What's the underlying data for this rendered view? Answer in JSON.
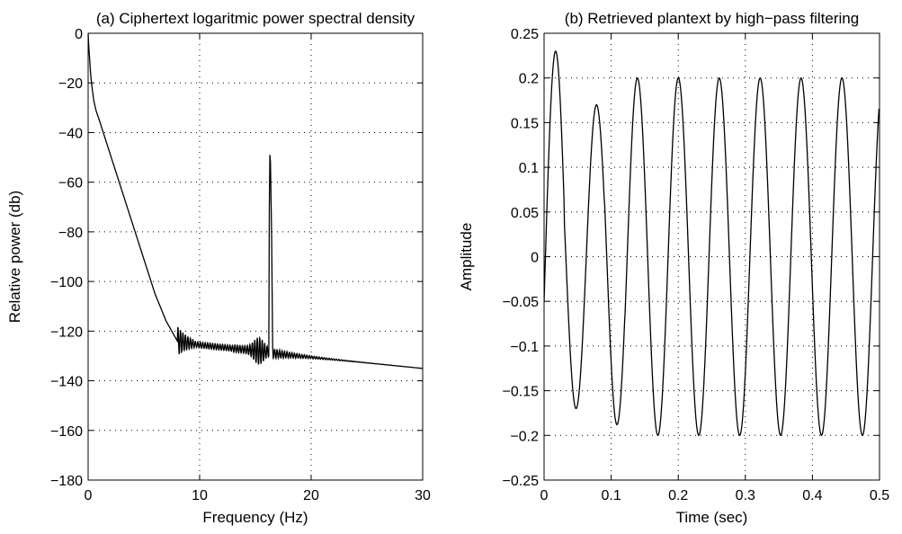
{
  "chart_data": [
    {
      "type": "line",
      "title": "(a) Ciphertext logaritmic power spectral density",
      "xlabel": "Frequency (Hz)",
      "ylabel": "Relative power (db)",
      "xlim": [
        0,
        30
      ],
      "ylim": [
        -180,
        0
      ],
      "xticks": [
        0,
        10,
        20,
        30
      ],
      "xtick_labels": [
        "0",
        "10",
        "20",
        "30"
      ],
      "yticks": [
        0,
        -20,
        -40,
        -60,
        -80,
        -100,
        -120,
        -140,
        -160,
        -180
      ],
      "ytick_labels": [
        "0",
        "−20",
        "−40",
        "−60",
        "−80",
        "−100",
        "−120",
        "−140",
        "−160",
        "−180"
      ],
      "grid": "dotted",
      "line_color": "#000000",
      "series": [
        {
          "x": [
            0,
            0.05,
            0.1,
            0.2,
            0.3,
            0.5,
            0.7,
            1.0,
            1.5,
            2.0,
            3.0,
            4.0,
            5.0,
            6.0,
            7.0,
            8.0,
            8.5,
            9.0,
            10.0,
            11.0,
            12.0,
            13.0,
            14.0,
            15.0,
            15.5,
            16.0,
            16.2,
            16.3,
            16.5,
            16.6,
            16.8,
            17.0,
            18.0,
            19.0,
            20.0,
            22.0,
            24.0,
            26.0,
            28.0,
            30.0
          ],
          "y": [
            0,
            -5,
            -8,
            -15,
            -20,
            -27,
            -31,
            -35,
            -42,
            -49,
            -63,
            -77,
            -91,
            -105,
            -116,
            -124,
            -126,
            -125,
            -125,
            -126,
            -127,
            -127,
            -128,
            -130,
            -131,
            -128,
            -60,
            -49,
            -60,
            -127,
            -129,
            -129,
            -129,
            -130,
            -131,
            -132,
            -132,
            -133,
            -134,
            -135
          ]
        }
      ]
    },
    {
      "type": "line",
      "title": "(b) Retrieved plantext by high−pass filtering",
      "xlabel": "Time (sec)",
      "ylabel": "Amplitude",
      "xlim": [
        0,
        0.5
      ],
      "ylim": [
        -0.25,
        0.25
      ],
      "xticks": [
        0,
        0.1,
        0.2,
        0.3,
        0.4,
        0.5
      ],
      "xtick_labels": [
        "0",
        "0.1",
        "0.2",
        "0.3",
        "0.4",
        "0.5"
      ],
      "yticks": [
        0.25,
        0.2,
        0.15,
        0.1,
        0.05,
        0,
        -0.05,
        -0.1,
        -0.15,
        -0.2,
        -0.25
      ],
      "ytick_labels": [
        "0.25",
        "0.2",
        "0.15",
        "0.1",
        "0.05",
        "0",
        "−0.05",
        "−0.1",
        "−0.15",
        "−0.2",
        "−0.25"
      ],
      "grid": "dotted",
      "line_color": "#000000",
      "series": [
        {
          "x": [
            0,
            0.017,
            0.045,
            0.074,
            0.105,
            0.135,
            0.166,
            0.196,
            0.227,
            0.257,
            0.288,
            0.318,
            0.349,
            0.379,
            0.41,
            0.44,
            0.471,
            0.5
          ],
          "y": [
            -0.05,
            0.23,
            -0.17,
            0.17,
            -0.19,
            0.2,
            -0.2,
            0.2,
            -0.2,
            0.2,
            -0.2,
            0.2,
            -0.2,
            0.2,
            -0.2,
            0.2,
            -0.2,
            0.2
          ]
        }
      ]
    }
  ]
}
